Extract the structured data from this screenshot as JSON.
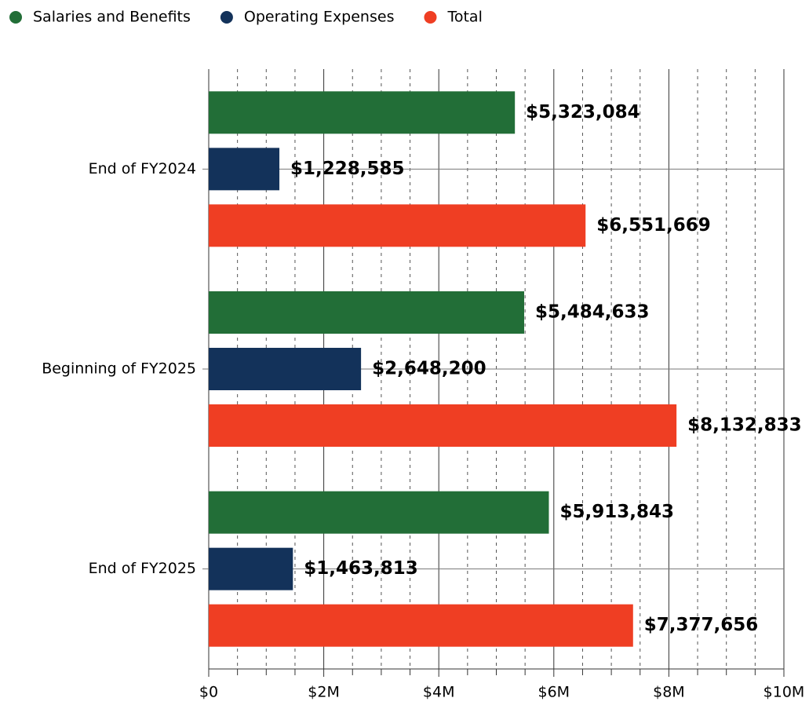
{
  "chart_data": {
    "type": "barh",
    "categories": [
      "End of FY2024",
      "Beginning of FY2025",
      "End of FY2025"
    ],
    "series": [
      {
        "name": "Salaries and Benefits",
        "color": "#226e37",
        "values": [
          5323084,
          5484633,
          5913843
        ],
        "value_labels": [
          "$5,323,084",
          "$5,484,633",
          "$5,913,843"
        ]
      },
      {
        "name": "Operating Expenses",
        "color": "#13325a",
        "values": [
          1228585,
          2648200,
          1463813
        ],
        "value_labels": [
          "$1,228,585",
          "$2,648,200",
          "$1,463,813"
        ]
      },
      {
        "name": "Total",
        "color": "#ef3e23",
        "values": [
          6551669,
          8132833,
          7377656
        ],
        "value_labels": [
          "$6,551,669",
          "$8,132,833",
          "$7,377,656"
        ]
      }
    ],
    "xlim": [
      0,
      10000000
    ],
    "xticks": [
      {
        "value": 0,
        "label": "$0"
      },
      {
        "value": 2000000,
        "label": "$2M"
      },
      {
        "value": 4000000,
        "label": "$4M"
      },
      {
        "value": 6000000,
        "label": "$6M"
      },
      {
        "value": 8000000,
        "label": "$8M"
      },
      {
        "value": 10000000,
        "label": "$10M"
      }
    ],
    "xminorticks": [
      500000,
      1000000,
      1500000,
      2500000,
      3000000,
      3500000,
      4500000,
      5000000,
      5500000,
      6500000,
      7000000,
      7500000,
      8500000,
      9000000,
      9500000
    ],
    "grid": true,
    "legend": "top"
  }
}
